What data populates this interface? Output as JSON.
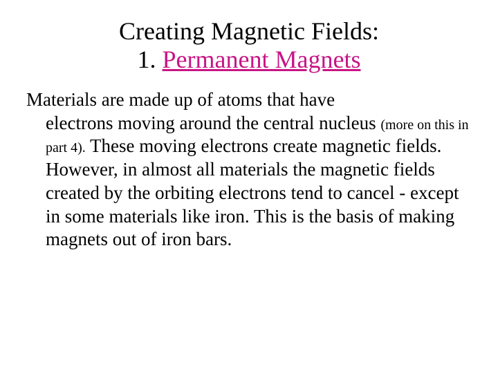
{
  "title": {
    "line1": "Creating Magnetic Fields:",
    "number": "1. ",
    "subtitle": "Permanent Magnets",
    "title_fontsize": 36,
    "title_color": "#000000",
    "subtitle_color": "#c71585"
  },
  "body": {
    "first_line": "Materials are made up of atoms that have",
    "part1": "electrons moving around the central nucleus ",
    "parenthetical": "(more on this in part 4).",
    "part2": "  These moving electrons create magnetic fields.  However, in almost all materials the magnetic fields created by the orbiting electrons tend to cancel - except in some materials like iron.  This is the basis of making magnets out of iron bars.",
    "body_fontsize": 27,
    "parenthetical_fontsize": 20,
    "text_color": "#000000"
  },
  "background_color": "#ffffff"
}
